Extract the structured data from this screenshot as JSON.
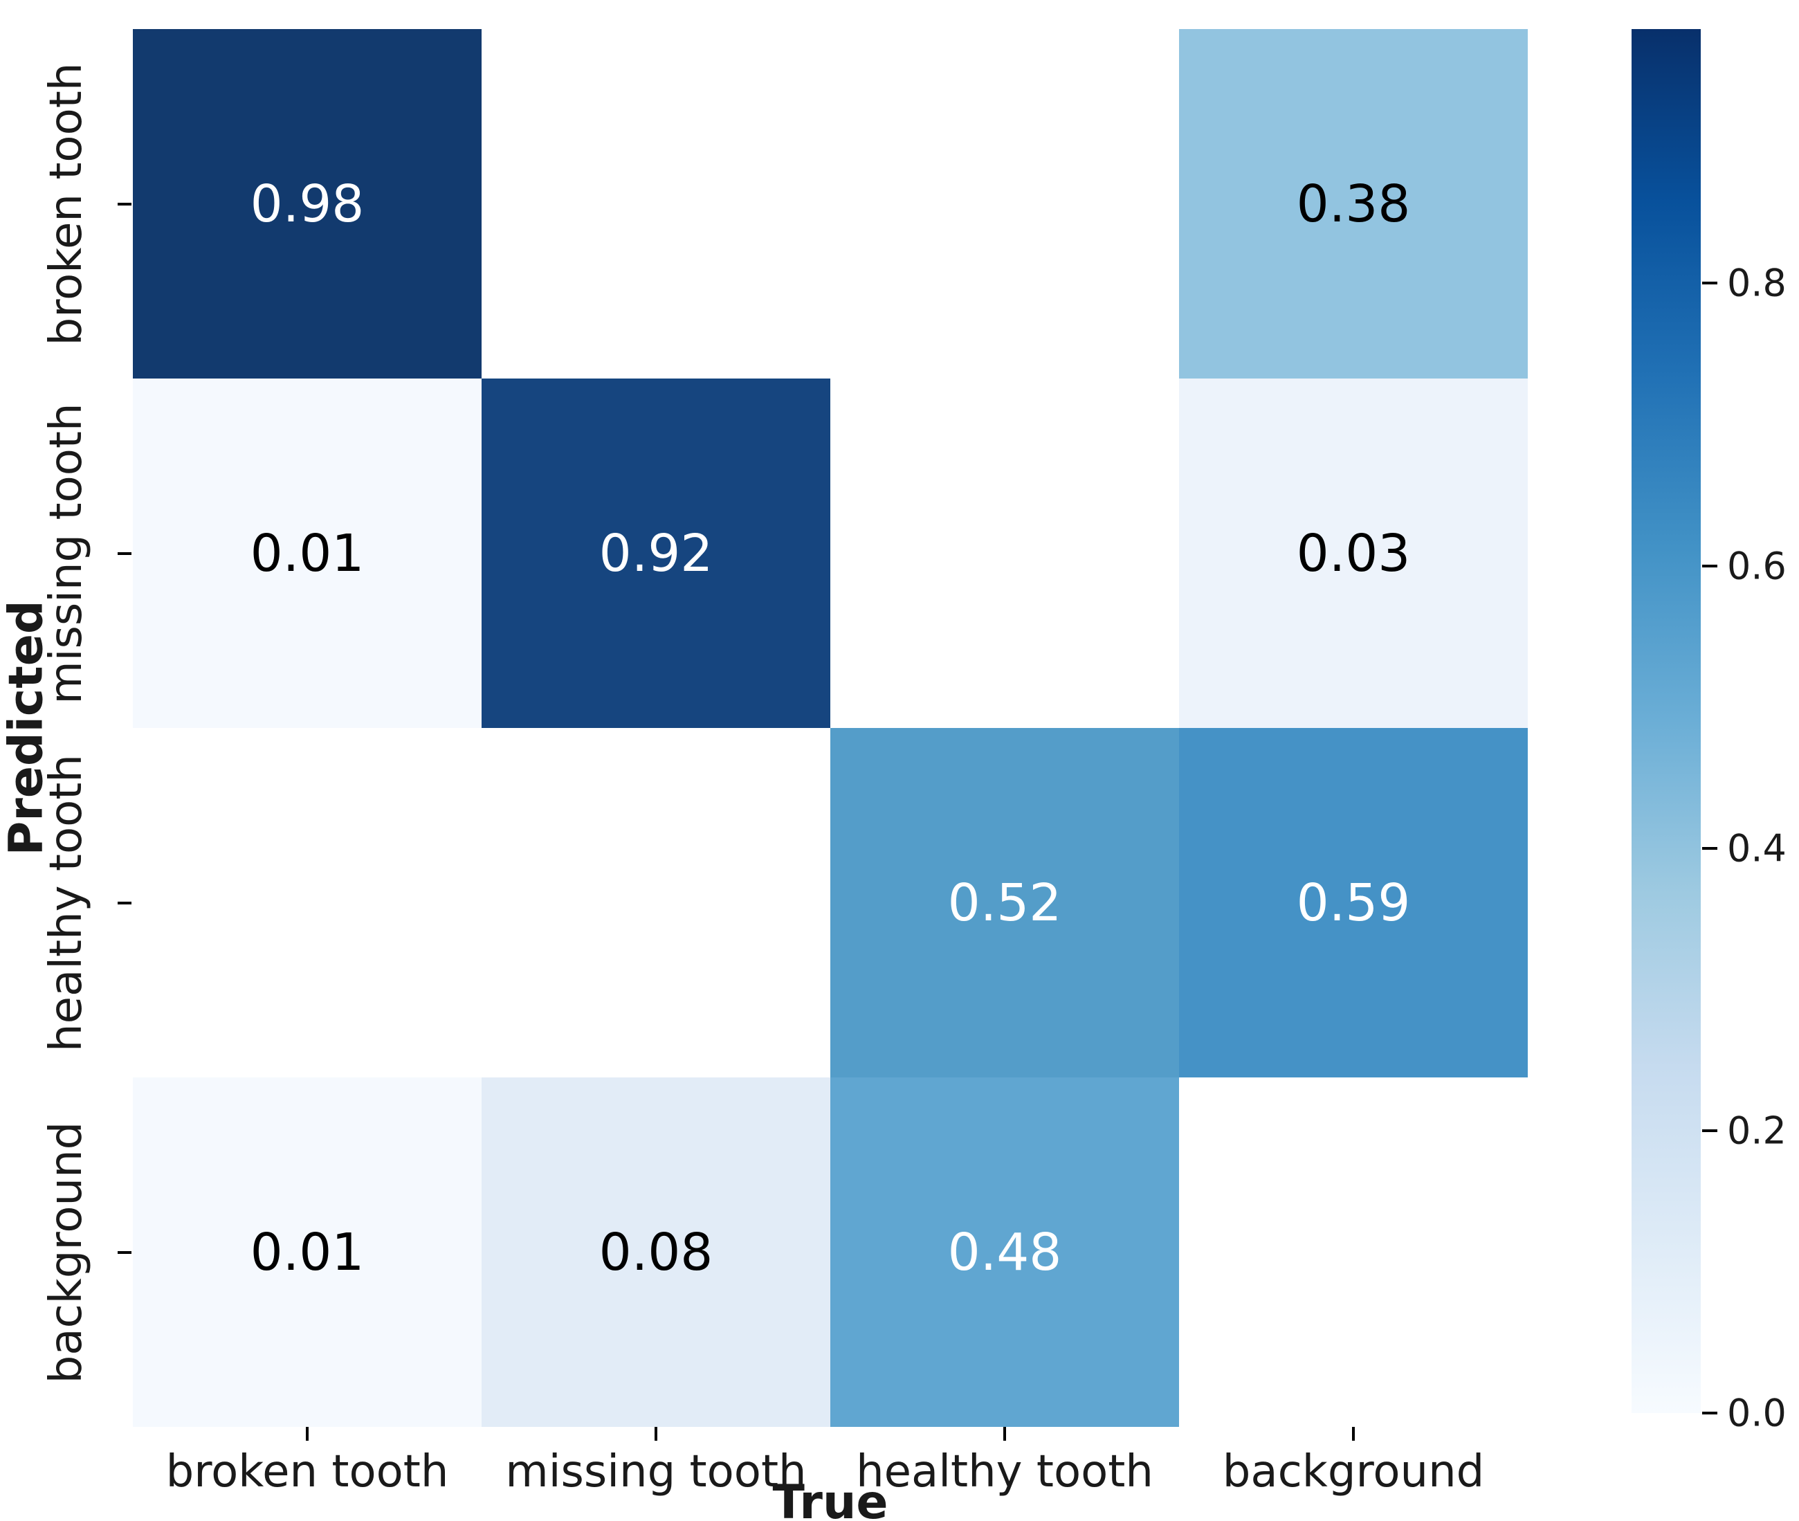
{
  "chart_data": {
    "type": "heatmap",
    "title": "",
    "xlabel": "True",
    "ylabel": "Predicted",
    "x_categories": [
      "broken tooth",
      "missing tooth",
      "healthy tooth",
      "background"
    ],
    "y_categories": [
      "broken tooth",
      "missing tooth",
      "healthy tooth",
      "background"
    ],
    "matrix": [
      [
        0.98,
        null,
        null,
        0.38
      ],
      [
        0.01,
        0.92,
        null,
        0.03
      ],
      [
        null,
        null,
        0.52,
        0.59
      ],
      [
        0.01,
        0.08,
        0.48,
        null
      ]
    ],
    "annotations": [
      [
        "0.98",
        "",
        "",
        "0.38"
      ],
      [
        "0.01",
        "0.92",
        "",
        "0.03"
      ],
      [
        "",
        "",
        "0.52",
        "0.59"
      ],
      [
        "0.01",
        "0.08",
        "0.48",
        ""
      ]
    ],
    "cell_colors": [
      [
        "#123a6e",
        null,
        null,
        "#92c4e0"
      ],
      [
        "#f5f9fe",
        "#16457f",
        null,
        "#edf3fb"
      ],
      [
        null,
        null,
        "#549dc9",
        "#4592c6"
      ],
      [
        "#f5f9fe",
        "#e2ecf7",
        "#60a6d1",
        null
      ]
    ],
    "annotation_text_colors": [
      [
        "#ffffff",
        "",
        "",
        "#000000"
      ],
      [
        "#000000",
        "#ffffff",
        "",
        "#000000"
      ],
      [
        "",
        "",
        "#ffffff",
        "#ffffff"
      ],
      [
        "#000000",
        "#000000",
        "#ffffff",
        ""
      ]
    ],
    "masked_cell_color": "#ffffff",
    "colormap": "Blues",
    "vmin": 0.0,
    "vmax": 0.98,
    "grid": false,
    "legend_position": "colorbar-right",
    "colorbar": {
      "tick_labels": [
        "0.8",
        "0.6",
        "0.4",
        "0.2",
        "0.0"
      ],
      "tick_values": [
        0.8,
        0.6,
        0.4,
        0.2,
        0.0
      ],
      "gradient_stops": [
        {
          "t": 0.0,
          "color": "#f7fbff"
        },
        {
          "t": 0.125,
          "color": "#deebf7"
        },
        {
          "t": 0.25,
          "color": "#c6dbef"
        },
        {
          "t": 0.375,
          "color": "#9ecae1"
        },
        {
          "t": 0.5,
          "color": "#6baed6"
        },
        {
          "t": 0.625,
          "color": "#4292c6"
        },
        {
          "t": 0.75,
          "color": "#2171b5"
        },
        {
          "t": 0.875,
          "color": "#08519c"
        },
        {
          "t": 1.0,
          "color": "#08306b"
        }
      ]
    }
  }
}
